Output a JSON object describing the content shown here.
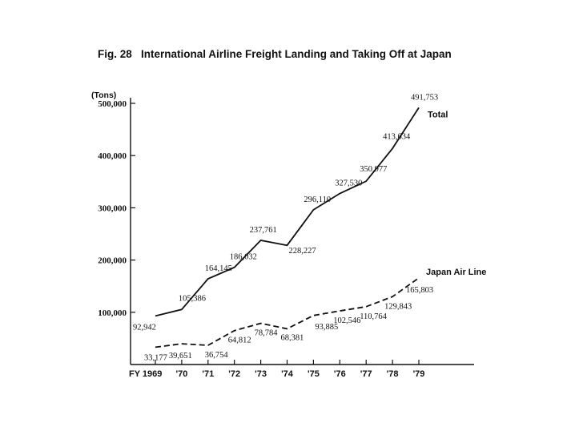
{
  "chart_data": {
    "type": "line",
    "title": "Fig. 28   International Airline Freight Landing and Taking Off at Japan",
    "ylabel": "(Tons)",
    "xlabel": "",
    "categories": [
      "FY 1969",
      "'70",
      "'71",
      "'72",
      "'73",
      "'74",
      "'75",
      "'76",
      "'77",
      "'78",
      "'79"
    ],
    "series": [
      {
        "name": "Total",
        "style": "solid",
        "values": [
          92942,
          105386,
          164145,
          186032,
          237761,
          228227,
          296110,
          327530,
          350977,
          413634,
          491753
        ],
        "labels": [
          "92,942",
          "105,386",
          "164,145",
          "186,032",
          "237,761",
          "228,227",
          "296,110",
          "327,530",
          "350,977",
          "413,634",
          "491,753"
        ]
      },
      {
        "name": "Japan Air Line",
        "style": "dashed",
        "values": [
          33177,
          39651,
          36754,
          64812,
          78784,
          68381,
          93885,
          102546,
          110764,
          129843,
          165803
        ],
        "labels": [
          "33,177",
          "39,651",
          "36,754",
          "64,812",
          "78,784",
          "68,381",
          "93,885",
          "102,546",
          "110,764",
          "129,843",
          "165,803"
        ]
      }
    ],
    "yticks": [
      100000,
      200000,
      300000,
      400000,
      500000
    ],
    "ytick_labels": [
      "100,000",
      "200,000",
      "300,000",
      "400,000",
      "500,000"
    ],
    "ylim": [
      0,
      500000
    ],
    "grid": false,
    "legend": "inline-labels"
  }
}
